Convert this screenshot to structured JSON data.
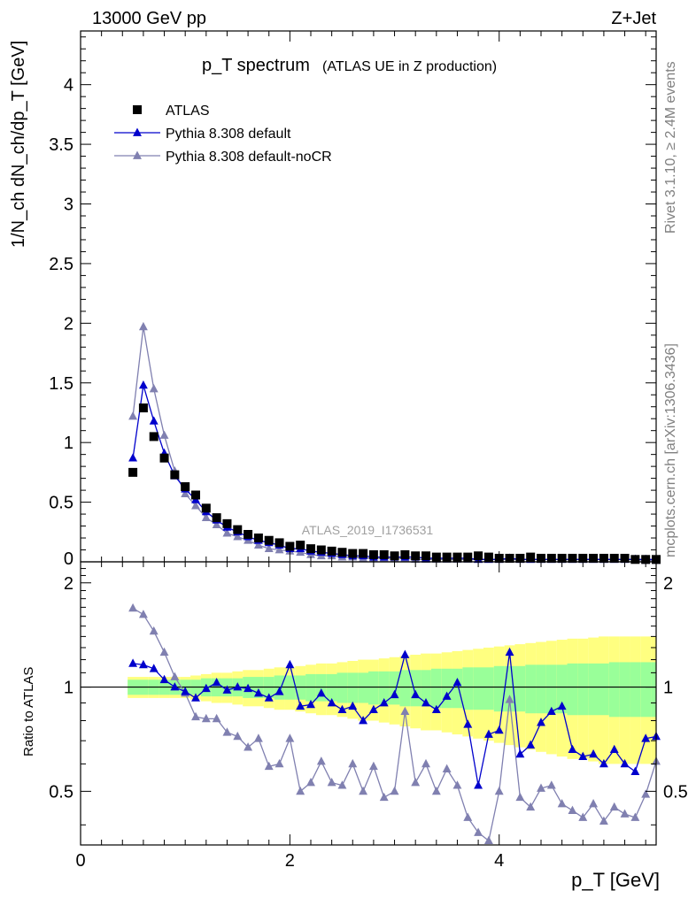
{
  "header": {
    "energy_label": "13000 GeV pp",
    "process_label": "Z+Jet"
  },
  "side_labels": {
    "rivet": "Rivet 3.1.10, ≥ 2.4M events",
    "mcplots": "mcplots.cern.ch [arXiv:1306.3436]"
  },
  "analysis_label": "ATLAS_2019_I1736531",
  "colors": {
    "data": "#000000",
    "default": "#0000cc",
    "nocr": "#8080b0",
    "band_inner": "#99ff99",
    "band_outer": "#ffff80"
  },
  "chart_data": [
    {
      "type": "scatter",
      "title": "p_T spectrum",
      "subtitle": "(ATLAS UE in Z production)",
      "ylabel": "1/N_ch dN_ch/dp_T [GeV]",
      "xlim": [
        0,
        5.5
      ],
      "ylim": [
        0,
        4.45
      ],
      "yticks": [
        "0.5",
        "1",
        "1.5",
        "2",
        "2.5",
        "3",
        "3.5",
        "4"
      ],
      "x": [
        0.5,
        0.6,
        0.7,
        0.8,
        0.9,
        1.0,
        1.1,
        1.2,
        1.3,
        1.4,
        1.5,
        1.6,
        1.7,
        1.8,
        1.9,
        2.0,
        2.1,
        2.2,
        2.3,
        2.4,
        2.5,
        2.6,
        2.7,
        2.8,
        2.9,
        3.0,
        3.1,
        3.2,
        3.3,
        3.4,
        3.5,
        3.6,
        3.7,
        3.8,
        3.9,
        4.0,
        4.1,
        4.2,
        4.3,
        4.4,
        4.5,
        4.6,
        4.7,
        4.8,
        4.9,
        5.0,
        5.1,
        5.2,
        5.3,
        5.4,
        5.5
      ],
      "series": [
        {
          "name": "ATLAS",
          "marker": "square",
          "values": [
            0.75,
            1.29,
            1.05,
            0.87,
            0.73,
            0.63,
            0.56,
            0.45,
            0.37,
            0.32,
            0.27,
            0.23,
            0.2,
            0.18,
            0.16,
            0.13,
            0.14,
            0.11,
            0.1,
            0.09,
            0.08,
            0.07,
            0.07,
            0.06,
            0.06,
            0.05,
            0.06,
            0.05,
            0.05,
            0.04,
            0.04,
            0.04,
            0.04,
            0.05,
            0.04,
            0.03,
            0.03,
            0.03,
            0.04,
            0.03,
            0.03,
            0.03,
            0.03,
            0.03,
            0.03,
            0.03,
            0.03,
            0.03,
            0.02,
            0.02,
            0.02
          ]
        },
        {
          "name": "Pythia 8.308 default",
          "marker": "triangle",
          "values": [
            0.87,
            1.48,
            1.18,
            0.91,
            0.72,
            0.61,
            0.52,
            0.42,
            0.35,
            0.29,
            0.25,
            0.21,
            0.18,
            0.16,
            0.14,
            0.11,
            0.11,
            0.09,
            0.08,
            0.07,
            0.06,
            0.05,
            0.05,
            0.04,
            0.04,
            0.04,
            0.04,
            0.04,
            0.03,
            0.03,
            0.03,
            0.03,
            0.03,
            0.02,
            0.02,
            0.02,
            0.03,
            0.02,
            0.02,
            0.02,
            0.02,
            0.02,
            0.02,
            0.02,
            0.02,
            0.02,
            0.02,
            0.02,
            0.02,
            0.02,
            0.02
          ]
        },
        {
          "name": "Pythia 8.308 default-noCR",
          "marker": "triangle",
          "values": [
            1.22,
            1.97,
            1.45,
            1.06,
            0.76,
            0.57,
            0.47,
            0.37,
            0.31,
            0.24,
            0.21,
            0.18,
            0.14,
            0.11,
            0.1,
            0.09,
            0.08,
            0.06,
            0.05,
            0.05,
            0.04,
            0.04,
            0.03,
            0.03,
            0.03,
            0.03,
            0.03,
            0.02,
            0.02,
            0.02,
            0.02,
            0.02,
            0.02,
            0.02,
            0.02,
            0.02,
            0.02,
            0.02,
            0.02,
            0.02,
            0.02,
            0.02,
            0.02,
            0.02,
            0.02,
            0.02,
            0.02,
            0.02,
            0.02,
            0.01,
            0.01
          ]
        }
      ]
    },
    {
      "type": "line",
      "ylabel": "Ratio to ATLAS",
      "xlabel": "p_T [GeV]",
      "xlim": [
        0,
        5.5
      ],
      "ylim": [
        0.35,
        2.3
      ],
      "xticks": [
        "0",
        "2",
        "4"
      ],
      "yticks": [
        "0.5",
        "1",
        "2"
      ],
      "reference_line": 1.0,
      "x": [
        0.5,
        0.6,
        0.7,
        0.8,
        0.9,
        1.0,
        1.1,
        1.2,
        1.3,
        1.4,
        1.5,
        1.6,
        1.7,
        1.8,
        1.9,
        2.0,
        2.1,
        2.2,
        2.3,
        2.4,
        2.5,
        2.6,
        2.7,
        2.8,
        2.9,
        3.0,
        3.1,
        3.2,
        3.3,
        3.4,
        3.5,
        3.6,
        3.7,
        3.8,
        3.9,
        4.0,
        4.1,
        4.2,
        4.3,
        4.4,
        4.5,
        4.6,
        4.7,
        4.8,
        4.9,
        5.0,
        5.1,
        5.2,
        5.3,
        5.4,
        5.5
      ],
      "series": [
        {
          "name": "Pythia 8.308 default",
          "values": [
            1.17,
            1.16,
            1.13,
            1.05,
            1.0,
            0.97,
            0.93,
            0.99,
            1.03,
            0.98,
            1.0,
            0.99,
            0.96,
            0.93,
            0.97,
            1.16,
            0.88,
            0.89,
            0.96,
            0.9,
            0.86,
            0.88,
            0.8,
            0.86,
            0.9,
            0.95,
            1.24,
            0.95,
            0.9,
            0.86,
            0.94,
            1.03,
            0.78,
            0.52,
            0.73,
            0.75,
            1.26,
            0.64,
            0.68,
            0.79,
            0.85,
            0.88,
            0.66,
            0.63,
            0.64,
            0.6,
            0.66,
            0.6,
            0.57,
            0.71,
            0.72
          ]
        },
        {
          "name": "Pythia 8.308 default-noCR",
          "values": [
            1.69,
            1.62,
            1.45,
            1.26,
            1.07,
            0.96,
            0.82,
            0.81,
            0.81,
            0.74,
            0.72,
            0.67,
            0.71,
            0.59,
            0.6,
            0.71,
            0.5,
            0.53,
            0.61,
            0.53,
            0.52,
            0.6,
            0.5,
            0.59,
            0.48,
            0.5,
            0.85,
            0.53,
            0.6,
            0.5,
            0.58,
            0.52,
            0.42,
            0.38,
            0.36,
            0.5,
            0.92,
            0.48,
            0.45,
            0.51,
            0.52,
            0.46,
            0.44,
            0.42,
            0.46,
            0.41,
            0.45,
            0.43,
            0.42,
            0.49,
            0.61
          ]
        }
      ],
      "band_inner_halfwidth": [
        0.05,
        0.05,
        0.05,
        0.05,
        0.05,
        0.05,
        0.05,
        0.06,
        0.06,
        0.06,
        0.06,
        0.07,
        0.07,
        0.07,
        0.08,
        0.08,
        0.08,
        0.09,
        0.09,
        0.09,
        0.1,
        0.1,
        0.1,
        0.11,
        0.11,
        0.11,
        0.12,
        0.12,
        0.12,
        0.13,
        0.13,
        0.13,
        0.14,
        0.14,
        0.14,
        0.15,
        0.15,
        0.15,
        0.16,
        0.16,
        0.16,
        0.16,
        0.17,
        0.17,
        0.17,
        0.17,
        0.18,
        0.18,
        0.18,
        0.18,
        0.18
      ],
      "band_outer_halfwidth": [
        0.07,
        0.07,
        0.07,
        0.07,
        0.07,
        0.07,
        0.08,
        0.09,
        0.1,
        0.1,
        0.11,
        0.12,
        0.12,
        0.13,
        0.14,
        0.14,
        0.15,
        0.16,
        0.17,
        0.17,
        0.18,
        0.19,
        0.2,
        0.2,
        0.21,
        0.22,
        0.23,
        0.24,
        0.25,
        0.25,
        0.26,
        0.27,
        0.28,
        0.29,
        0.3,
        0.31,
        0.32,
        0.33,
        0.34,
        0.35,
        0.36,
        0.37,
        0.38,
        0.38,
        0.39,
        0.4,
        0.4,
        0.4,
        0.4,
        0.4,
        0.4
      ]
    }
  ]
}
